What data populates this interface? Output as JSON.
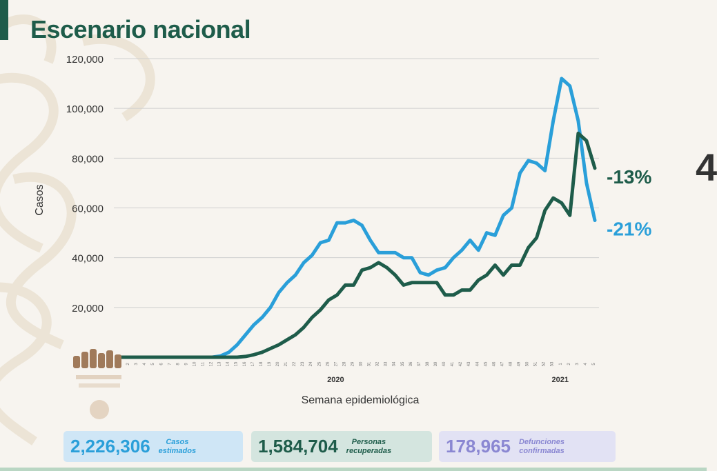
{
  "title": "Escenario nacional",
  "chart_data": {
    "type": "line",
    "ylabel": "Casos",
    "xlabel": "Semana epidemiológica",
    "ylim": [
      0,
      120000
    ],
    "y_ticks": [
      "20,000",
      "40,000",
      "60,000",
      "80,000",
      "100,000",
      "120,000"
    ],
    "y_tick_values": [
      20000,
      40000,
      60000,
      80000,
      100000,
      120000
    ],
    "grid": true,
    "year_labels": [
      {
        "text": "2020",
        "week_index": 26
      },
      {
        "text": "2021",
        "week_index": 53
      }
    ],
    "x_tick_labels": [
      "1",
      "2",
      "3",
      "4",
      "5",
      "6",
      "7",
      "8",
      "9",
      "10",
      "11",
      "12",
      "13",
      "14",
      "15",
      "16",
      "17",
      "18",
      "19",
      "20",
      "21",
      "22",
      "23",
      "24",
      "25",
      "26",
      "27",
      "28",
      "29",
      "30",
      "31",
      "32",
      "33",
      "34",
      "35",
      "36",
      "37",
      "38",
      "39",
      "40",
      "41",
      "42",
      "43",
      "44",
      "45",
      "46",
      "47",
      "48",
      "49",
      "50",
      "51",
      "52",
      "53",
      "1",
      "2",
      "3",
      "4",
      "5"
    ],
    "series": [
      {
        "color": "#2a9fd9",
        "values": [
          0,
          0,
          0,
          0,
          0,
          0,
          0,
          0,
          0,
          0,
          0,
          0,
          500,
          2000,
          5000,
          9000,
          13000,
          16000,
          20000,
          26000,
          30000,
          33000,
          38000,
          41000,
          46000,
          47000,
          54000,
          54000,
          55000,
          53000,
          47000,
          42000,
          42000,
          42000,
          40000,
          40000,
          34000,
          33000,
          35000,
          36000,
          40000,
          43000,
          47000,
          43000,
          50000,
          49000,
          57000,
          60000,
          74000,
          79000,
          78000,
          75000,
          95000,
          112000,
          109000,
          95000,
          70000,
          55000
        ],
        "end_label": "-21%"
      },
      {
        "color": "#1e5c4a",
        "values": [
          0,
          0,
          0,
          0,
          0,
          0,
          0,
          0,
          0,
          0,
          0,
          0,
          0,
          0,
          0,
          300,
          1000,
          2000,
          3500,
          5000,
          7000,
          9000,
          12000,
          16000,
          19000,
          23000,
          25000,
          29000,
          29000,
          35000,
          36000,
          38000,
          36000,
          33000,
          29000,
          30000,
          30000,
          30000,
          30000,
          25000,
          25000,
          27000,
          27000,
          31000,
          33000,
          37000,
          33000,
          37000,
          37000,
          44000,
          48000,
          59000,
          64000,
          62000,
          57000,
          90000,
          87000,
          76000
        ],
        "end_label": "-13%"
      }
    ]
  },
  "stats": [
    {
      "id": "cases",
      "value": "2,226,306",
      "label": "Casos\nestimados"
    },
    {
      "id": "recovered",
      "value": "1,584,704",
      "label": "Personas\nrecuperadas"
    },
    {
      "id": "deaths",
      "value": "178,965",
      "label": "Defunciones\nconfirmadas"
    }
  ],
  "right_glyph": "4"
}
